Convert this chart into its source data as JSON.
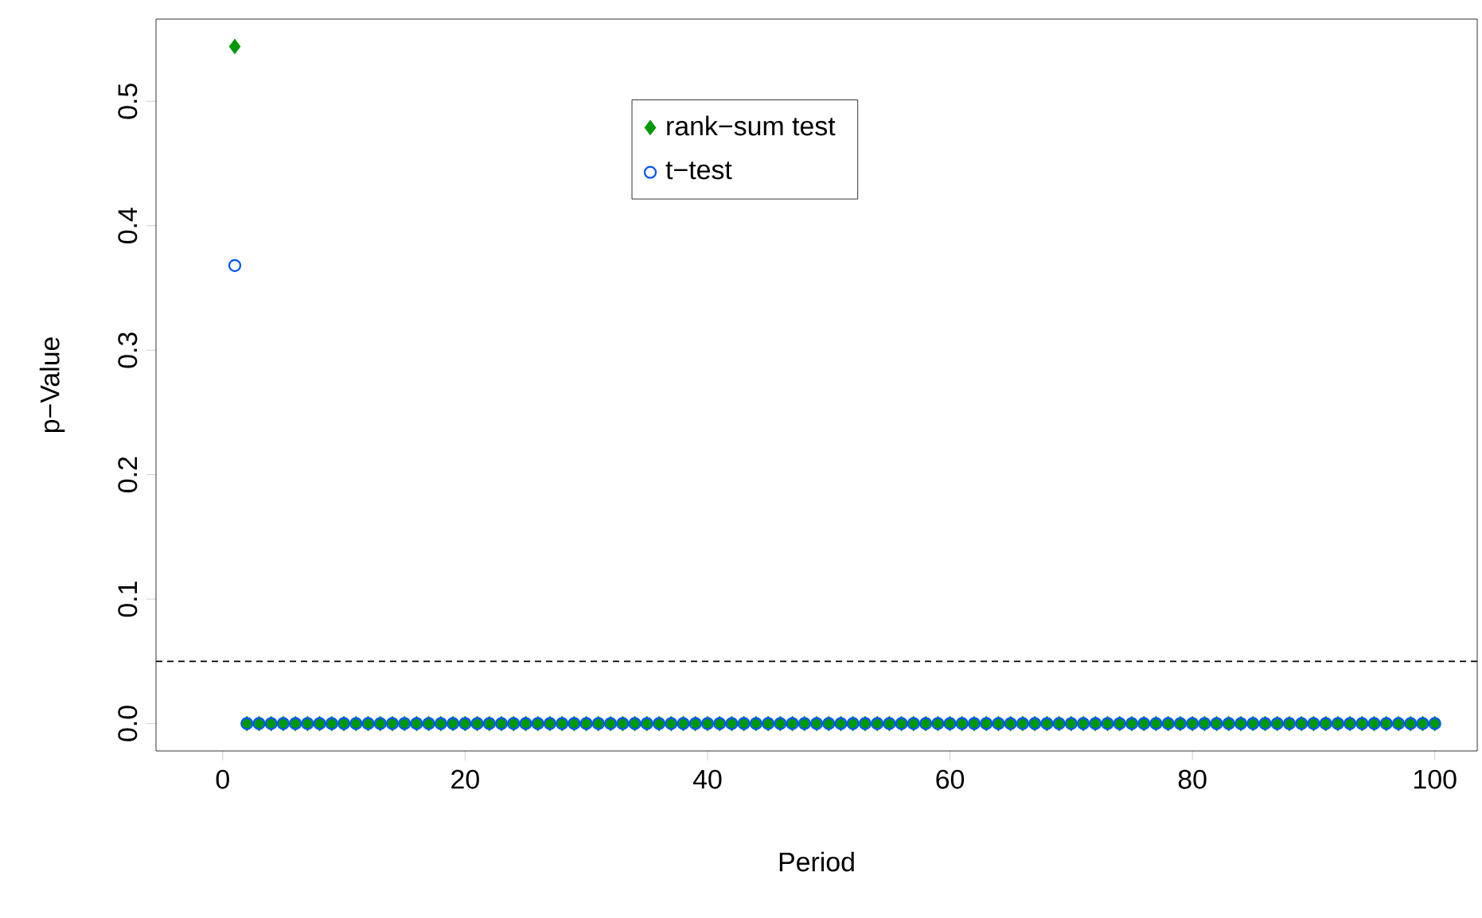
{
  "chart_data": {
    "type": "scatter",
    "xlabel": "Period",
    "ylabel": "p−Value",
    "x": [
      1,
      2,
      3,
      4,
      5,
      6,
      7,
      8,
      9,
      10,
      11,
      12,
      13,
      14,
      15,
      16,
      17,
      18,
      19,
      20,
      21,
      22,
      23,
      24,
      25,
      26,
      27,
      28,
      29,
      30,
      31,
      32,
      33,
      34,
      35,
      36,
      37,
      38,
      39,
      40,
      41,
      42,
      43,
      44,
      45,
      46,
      47,
      48,
      49,
      50,
      51,
      52,
      53,
      54,
      55,
      56,
      57,
      58,
      59,
      60,
      61,
      62,
      63,
      64,
      65,
      66,
      67,
      68,
      69,
      70,
      71,
      72,
      73,
      74,
      75,
      76,
      77,
      78,
      79,
      80,
      81,
      82,
      83,
      84,
      85,
      86,
      87,
      88,
      89,
      90,
      91,
      92,
      93,
      94,
      95,
      96,
      97,
      98,
      99,
      100
    ],
    "series": [
      {
        "name": "rank−sum test",
        "color": "#009900",
        "marker": "diamond",
        "values": [
          0.544,
          0,
          0,
          0,
          0,
          0,
          0,
          0,
          0,
          0,
          0,
          0,
          0,
          0,
          0,
          0,
          0,
          0,
          0,
          0,
          0,
          0,
          0,
          0,
          0,
          0,
          0,
          0,
          0,
          0,
          0,
          0,
          0,
          0,
          0,
          0,
          0,
          0,
          0,
          0,
          0,
          0,
          0,
          0,
          0,
          0,
          0,
          0,
          0,
          0,
          0,
          0,
          0,
          0,
          0,
          0,
          0,
          0,
          0,
          0,
          0,
          0,
          0,
          0,
          0,
          0,
          0,
          0,
          0,
          0,
          0,
          0,
          0,
          0,
          0,
          0,
          0,
          0,
          0,
          0,
          0,
          0,
          0,
          0,
          0,
          0,
          0,
          0,
          0,
          0,
          0,
          0,
          0,
          0,
          0,
          0,
          0,
          0,
          0,
          0
        ]
      },
      {
        "name": "t−test",
        "color": "#0055ff",
        "marker": "circle",
        "values": [
          0.368,
          0,
          0,
          0,
          0,
          0,
          0,
          0,
          0,
          0,
          0,
          0,
          0,
          0,
          0,
          0,
          0,
          0,
          0,
          0,
          0,
          0,
          0,
          0,
          0,
          0,
          0,
          0,
          0,
          0,
          0,
          0,
          0,
          0,
          0,
          0,
          0,
          0,
          0,
          0,
          0,
          0,
          0,
          0,
          0,
          0,
          0,
          0,
          0,
          0,
          0,
          0,
          0,
          0,
          0,
          0,
          0,
          0,
          0,
          0,
          0,
          0,
          0,
          0,
          0,
          0,
          0,
          0,
          0,
          0,
          0,
          0,
          0,
          0,
          0,
          0,
          0,
          0,
          0,
          0,
          0,
          0,
          0,
          0,
          0,
          0,
          0,
          0,
          0,
          0,
          0,
          0,
          0,
          0,
          0,
          0,
          0,
          0,
          0,
          0
        ]
      }
    ],
    "xlim": [
      -5.5,
      103.5
    ],
    "ylim": [
      -0.022,
      0.566
    ],
    "xticks": [
      0,
      20,
      40,
      60,
      80,
      100
    ],
    "yticks": [
      {
        "value": 0,
        "label": "0.0"
      },
      {
        "value": 0.1,
        "label": "0.1"
      },
      {
        "value": 0.2,
        "label": "0.2"
      },
      {
        "value": 0.3,
        "label": "0.3"
      },
      {
        "value": 0.4,
        "label": "0.4"
      },
      {
        "value": 0.5,
        "label": "0.5"
      }
    ],
    "ref_lines": [
      {
        "axis": "y",
        "value": 0.05,
        "line_style": "dashed"
      }
    ],
    "legend": "top",
    "grid": false
  }
}
